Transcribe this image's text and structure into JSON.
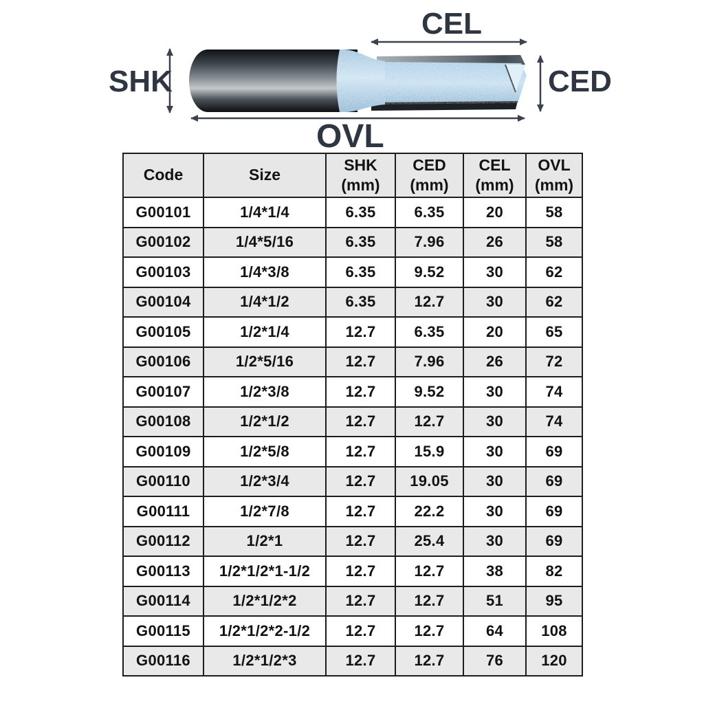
{
  "diagram": {
    "labels": {
      "shk": "SHK",
      "cel": "CEL",
      "ced": "CED",
      "ovl": "OVL"
    },
    "colors": {
      "label_text": "#2e3642",
      "arrow": "#3a424d",
      "shank_dark": "#15181b",
      "shank_highlight": "#c3c8cc",
      "flute_blue": "#b5d4e9",
      "flute_blue_light": "#d8ebf7",
      "steel_edge": "#7d868d",
      "bottom_strip": "#1d2125"
    }
  },
  "table": {
    "columns": [
      {
        "label": "Code",
        "unit": ""
      },
      {
        "label": "Size",
        "unit": ""
      },
      {
        "label": "SHK",
        "unit": "(mm)"
      },
      {
        "label": "CED",
        "unit": "(mm)"
      },
      {
        "label": "CEL",
        "unit": "(mm)"
      },
      {
        "label": "OVL",
        "unit": "(mm)"
      }
    ],
    "row_keys": [
      "code",
      "size",
      "shk",
      "ced",
      "cel",
      "ovl"
    ],
    "rows": [
      {
        "code": "G00101",
        "size": "1/4*1/4",
        "shk": "6.35",
        "ced": "6.35",
        "cel": "20",
        "ovl": "58"
      },
      {
        "code": "G00102",
        "size": "1/4*5/16",
        "shk": "6.35",
        "ced": "7.96",
        "cel": "26",
        "ovl": "58"
      },
      {
        "code": "G00103",
        "size": "1/4*3/8",
        "shk": "6.35",
        "ced": "9.52",
        "cel": "30",
        "ovl": "62"
      },
      {
        "code": "G00104",
        "size": "1/4*1/2",
        "shk": "6.35",
        "ced": "12.7",
        "cel": "30",
        "ovl": "62"
      },
      {
        "code": "G00105",
        "size": "1/2*1/4",
        "shk": "12.7",
        "ced": "6.35",
        "cel": "20",
        "ovl": "65"
      },
      {
        "code": "G00106",
        "size": "1/2*5/16",
        "shk": "12.7",
        "ced": "7.96",
        "cel": "26",
        "ovl": "72"
      },
      {
        "code": "G00107",
        "size": "1/2*3/8",
        "shk": "12.7",
        "ced": "9.52",
        "cel": "30",
        "ovl": "74"
      },
      {
        "code": "G00108",
        "size": "1/2*1/2",
        "shk": "12.7",
        "ced": "12.7",
        "cel": "30",
        "ovl": "74"
      },
      {
        "code": "G00109",
        "size": "1/2*5/8",
        "shk": "12.7",
        "ced": "15.9",
        "cel": "30",
        "ovl": "69"
      },
      {
        "code": "G00110",
        "size": "1/2*3/4",
        "shk": "12.7",
        "ced": "19.05",
        "cel": "30",
        "ovl": "69"
      },
      {
        "code": "G00111",
        "size": "1/2*7/8",
        "shk": "12.7",
        "ced": "22.2",
        "cel": "30",
        "ovl": "69"
      },
      {
        "code": "G00112",
        "size": "1/2*1",
        "shk": "12.7",
        "ced": "25.4",
        "cel": "30",
        "ovl": "69"
      },
      {
        "code": "G00113",
        "size": "1/2*1/2*1-1/2",
        "shk": "12.7",
        "ced": "12.7",
        "cel": "38",
        "ovl": "82"
      },
      {
        "code": "G00114",
        "size": "1/2*1/2*2",
        "shk": "12.7",
        "ced": "12.7",
        "cel": "51",
        "ovl": "95"
      },
      {
        "code": "G00115",
        "size": "1/2*1/2*2-1/2",
        "shk": "12.7",
        "ced": "12.7",
        "cel": "64",
        "ovl": "108"
      },
      {
        "code": "G00116",
        "size": "1/2*1/2*3",
        "shk": "12.7",
        "ced": "12.7",
        "cel": "76",
        "ovl": "120"
      }
    ]
  }
}
